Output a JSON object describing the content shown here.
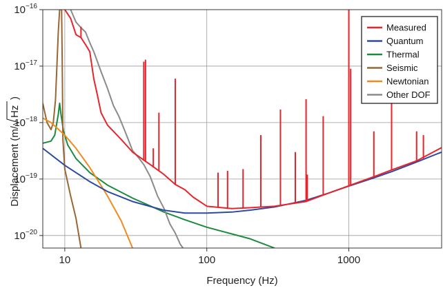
{
  "chart_data": {
    "type": "line",
    "xlabel": "Frequency (Hz)",
    "ylabel_prefix": "Displacement (m/",
    "ylabel_radicand": "Hz",
    "ylabel_suffix": ")",
    "x_scale": "log",
    "y_scale": "log",
    "xlim": [
      7,
      4500
    ],
    "ylim": [
      6e-21,
      1e-16
    ],
    "grid": true,
    "legend_position": "top-right",
    "x_ticks": [
      {
        "value": 10,
        "label": "10"
      },
      {
        "value": 100,
        "label": "100"
      },
      {
        "value": 1000,
        "label": "1000"
      }
    ],
    "y_ticks": [
      {
        "value": 1e-20,
        "base": "10",
        "exp": "−20"
      },
      {
        "value": 1e-19,
        "base": "10",
        "exp": "−19"
      },
      {
        "value": 1e-18,
        "base": "10",
        "exp": "−18"
      },
      {
        "value": 1e-17,
        "base": "10",
        "exp": "−17"
      },
      {
        "value": 1e-16,
        "base": "10",
        "exp": "−16"
      }
    ],
    "series": [
      {
        "name": "Thermal",
        "color": "#1a8a3e",
        "points": [
          [
            7,
            4.3e-19
          ],
          [
            8,
            4.7e-19
          ],
          [
            8.5,
            6e-19
          ],
          [
            9,
            1.4e-18
          ],
          [
            9.2,
            2.2e-18
          ],
          [
            9.4,
            1.4e-18
          ],
          [
            9.8,
            7e-19
          ],
          [
            10.5,
            4e-19
          ],
          [
            12,
            2.3e-19
          ],
          [
            15,
            1.3e-19
          ],
          [
            20,
            7.8e-20
          ],
          [
            30,
            4.6e-20
          ],
          [
            50,
            2.6e-20
          ],
          [
            70,
            1.9e-20
          ],
          [
            100,
            1.4e-20
          ],
          [
            200,
            8.8e-21
          ],
          [
            300,
            6e-21
          ]
        ]
      },
      {
        "name": "Seismic",
        "color": "#9a6530",
        "points": [
          [
            7,
            2.2e-18
          ],
          [
            7.5,
            1e-18
          ],
          [
            8,
            7.5e-19
          ],
          [
            8.3,
            1e-18
          ],
          [
            8.6,
            2.5e-18
          ],
          [
            8.8,
            1e-17
          ],
          [
            9,
            4e-17
          ],
          [
            9.2,
            1e-16
          ],
          [
            9.5,
            1e-16
          ],
          [
            9.6,
            1e-17
          ],
          [
            9.7,
            5e-19
          ],
          [
            10,
            1.5e-19
          ],
          [
            11,
            5e-20
          ],
          [
            12,
            2e-20
          ],
          [
            13,
            6e-21
          ]
        ]
      },
      {
        "name": "Newtonian",
        "color": "#f08a1e",
        "points": [
          [
            7,
            1.2e-18
          ],
          [
            8,
            1e-18
          ],
          [
            10,
            6e-19
          ],
          [
            12,
            3.5e-19
          ],
          [
            15,
            1.6e-19
          ],
          [
            20,
            5e-20
          ],
          [
            25,
            1.8e-20
          ],
          [
            30,
            6e-21
          ]
        ]
      },
      {
        "name": "Other DOF",
        "color": "#8a8a8a",
        "points": [
          [
            11,
            1e-16
          ],
          [
            12,
            6e-17
          ],
          [
            13,
            4.8e-17
          ],
          [
            14,
            4e-17
          ],
          [
            15,
            2.6e-17
          ],
          [
            16,
            1.8e-17
          ],
          [
            18,
            8e-18
          ],
          [
            20,
            4e-18
          ],
          [
            22,
            2e-18
          ],
          [
            24,
            1.3e-18
          ],
          [
            26,
            8e-19
          ],
          [
            28,
            5e-19
          ],
          [
            30,
            3.2e-19
          ],
          [
            33,
            2.4e-19
          ],
          [
            36,
            1.8e-19
          ],
          [
            40,
            1.1e-19
          ],
          [
            45,
            5e-20
          ],
          [
            50,
            3e-20
          ],
          [
            55,
            1.6e-20
          ],
          [
            60,
            1.1e-20
          ],
          [
            65,
            7e-21
          ],
          [
            68,
            6e-21
          ]
        ]
      },
      {
        "name": "Quantum",
        "color": "#2b4aa2",
        "points": [
          [
            7,
            3.5e-19
          ],
          [
            10,
            1.75e-19
          ],
          [
            15,
            9e-20
          ],
          [
            20,
            6e-20
          ],
          [
            30,
            4e-20
          ],
          [
            50,
            2.8e-20
          ],
          [
            70,
            2.5e-20
          ],
          [
            100,
            2.5e-20
          ],
          [
            150,
            2.6e-20
          ],
          [
            200,
            2.8e-20
          ],
          [
            300,
            3.2e-20
          ],
          [
            500,
            4.2e-20
          ],
          [
            700,
            5.5e-20
          ],
          [
            1000,
            7.5e-20
          ],
          [
            1500,
            1.05e-19
          ],
          [
            2000,
            1.35e-19
          ],
          [
            3000,
            2e-19
          ],
          [
            4500,
            3e-19
          ]
        ]
      },
      {
        "name": "Measured",
        "color": "#e8232a",
        "points": [
          [
            10,
            1e-16
          ],
          [
            11,
            7e-17
          ],
          [
            12,
            3.6e-17
          ],
          [
            13,
            3.2e-17
          ],
          [
            14,
            2.4e-17
          ],
          [
            15,
            1.8e-17
          ],
          [
            16,
            6e-18
          ],
          [
            17,
            3e-18
          ],
          [
            18,
            1.5e-18
          ],
          [
            20,
            9e-19
          ],
          [
            25,
            5e-19
          ],
          [
            30,
            3e-19
          ],
          [
            40,
            1.8e-19
          ],
          [
            50,
            1.2e-19
          ],
          [
            60,
            8e-20
          ],
          [
            70,
            6.5e-20
          ],
          [
            80,
            4.8e-20
          ],
          [
            100,
            3.3e-20
          ],
          [
            150,
            3e-20
          ],
          [
            200,
            3.1e-20
          ],
          [
            300,
            3.3e-20
          ],
          [
            500,
            4e-20
          ],
          [
            700,
            5.5e-20
          ],
          [
            1000,
            7.6e-20
          ],
          [
            1500,
            1.1e-19
          ],
          [
            2000,
            1.45e-19
          ],
          [
            3000,
            2.1e-19
          ],
          [
            4500,
            3.6e-19
          ]
        ]
      }
    ],
    "lines": [
      {
        "name": "Measured spike",
        "color": "#e8232a",
        "x": 13,
        "y_base": 3.2e-17,
        "y_peak": 5e-17
      },
      {
        "name": "Measured spike",
        "color": "#e8232a",
        "x": 36,
        "y_base": 2.1e-19,
        "y_peak": 1.2e-17
      },
      {
        "name": "Measured spike",
        "color": "#e8232a",
        "x": 37,
        "y_base": 2e-19,
        "y_peak": 1.3e-17
      },
      {
        "name": "Measured spike",
        "color": "#e8232a",
        "x": 42,
        "y_base": 1.6e-19,
        "y_peak": 3.5e-19
      },
      {
        "name": "Measured spike",
        "color": "#e8232a",
        "x": 46,
        "y_base": 1.4e-19,
        "y_peak": 1.5e-18
      },
      {
        "name": "Measured spike",
        "color": "#e8232a",
        "x": 60,
        "y_base": 8e-20,
        "y_peak": 6e-18
      },
      {
        "name": "Measured spike",
        "color": "#e8232a",
        "x": 120,
        "y_base": 3.2e-20,
        "y_peak": 1.3e-19
      },
      {
        "name": "Measured spike",
        "color": "#e8232a",
        "x": 140,
        "y_base": 3.1e-20,
        "y_peak": 1.4e-19
      },
      {
        "name": "Measured spike",
        "color": "#e8232a",
        "x": 180,
        "y_base": 3e-20,
        "y_peak": 1.5e-19
      },
      {
        "name": "Measured spike",
        "color": "#e8232a",
        "x": 240,
        "y_base": 3.2e-20,
        "y_peak": 6e-19
      },
      {
        "name": "Measured spike",
        "color": "#e8232a",
        "x": 330,
        "y_base": 3.4e-20,
        "y_peak": 1.7e-18
      },
      {
        "name": "Measured spike",
        "color": "#e8232a",
        "x": 420,
        "y_base": 3.8e-20,
        "y_peak": 3e-19
      },
      {
        "name": "Measured spike",
        "color": "#e8232a",
        "x": 500,
        "y_base": 4e-20,
        "y_peak": 2.6e-18
      },
      {
        "name": "Measured spike",
        "color": "#e8232a",
        "x": 510,
        "y_base": 4e-20,
        "y_peak": 1.2e-19
      },
      {
        "name": "Measured spike",
        "color": "#e8232a",
        "x": 660,
        "y_base": 5.3e-20,
        "y_peak": 1.3e-18
      },
      {
        "name": "Measured spike",
        "color": "#e8232a",
        "x": 1000,
        "y_base": 7.6e-20,
        "y_peak": 1e-16
      },
      {
        "name": "Measured spike",
        "color": "#e8232a",
        "x": 1030,
        "y_base": 7.9e-20,
        "y_peak": 9e-18
      },
      {
        "name": "Measured spike",
        "color": "#e8232a",
        "x": 1500,
        "y_base": 1.1e-19,
        "y_peak": 7e-19
      },
      {
        "name": "Measured spike",
        "color": "#e8232a",
        "x": 2000,
        "y_base": 1.45e-19,
        "y_peak": 1e-17
      },
      {
        "name": "Measured spike",
        "color": "#e8232a",
        "x": 3000,
        "y_base": 2.1e-19,
        "y_peak": 7e-19
      },
      {
        "name": "Measured spike",
        "color": "#e8232a",
        "x": 3350,
        "y_base": 2.3e-19,
        "y_peak": 6e-19
      }
    ],
    "legend": [
      {
        "label": "Measured",
        "color": "#e8232a"
      },
      {
        "label": "Quantum",
        "color": "#2b4aa2"
      },
      {
        "label": "Thermal",
        "color": "#1a8a3e"
      },
      {
        "label": "Seismic",
        "color": "#9a6530"
      },
      {
        "label": "Newtonian",
        "color": "#f08a1e"
      },
      {
        "label": "Other DOF",
        "color": "#8a8a8a"
      }
    ]
  }
}
